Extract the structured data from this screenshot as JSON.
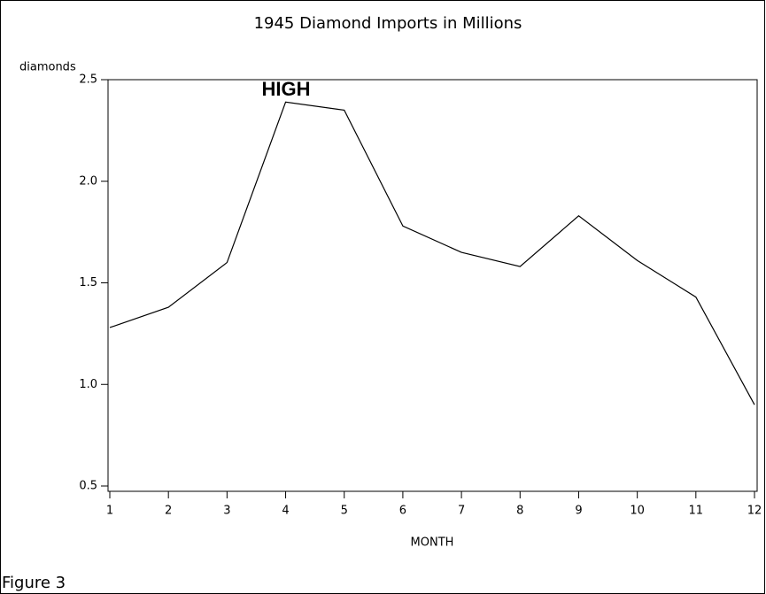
{
  "chart_data": {
    "type": "line",
    "title": "1945 Diamond Imports in Millions",
    "y_label": "diamonds",
    "x_label": "MONTH",
    "annotation": "HIGH",
    "caption": "Figure 3",
    "x": [
      1,
      2,
      3,
      4,
      5,
      6,
      7,
      8,
      9,
      10,
      11,
      12
    ],
    "series": [
      {
        "name": "diamonds",
        "color": "#000000",
        "values": [
          1.28,
          1.38,
          1.6,
          2.39,
          2.35,
          1.78,
          1.65,
          1.58,
          1.83,
          1.61,
          1.43,
          0.9
        ]
      }
    ],
    "xlim": [
      1,
      12
    ],
    "xticks": [
      1,
      2,
      3,
      4,
      5,
      6,
      7,
      8,
      9,
      10,
      11,
      12
    ],
    "ylim": [
      0.5,
      2.5
    ],
    "yticks": [
      0.5,
      {
        "value": 1,
        "label": "1.0"
      },
      1.5,
      {
        "value": 2,
        "label": "2.0"
      },
      2.5
    ],
    "grid": false
  }
}
